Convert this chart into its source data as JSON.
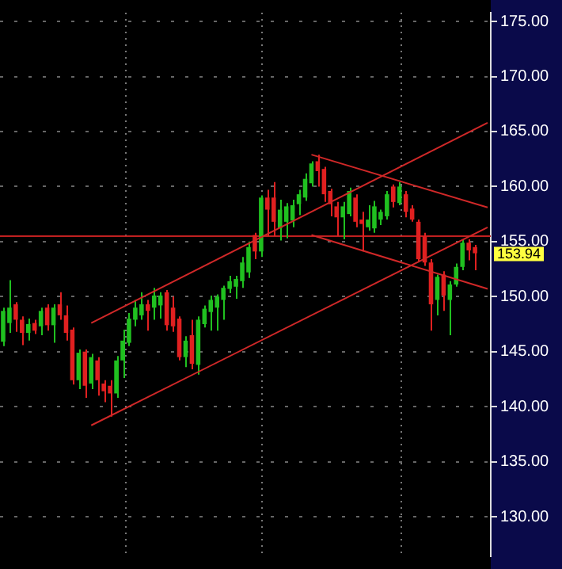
{
  "chart_data": {
    "type": "candlestick",
    "categories": [
      null,
      null,
      null,
      null,
      null,
      null,
      null,
      null,
      null,
      null,
      null,
      null,
      null,
      null,
      null,
      null,
      null,
      null,
      null,
      null,
      null,
      null,
      null,
      null,
      null,
      null,
      null,
      null,
      null,
      null,
      null,
      null,
      null,
      null,
      null,
      null,
      null,
      null,
      null,
      null,
      null,
      null,
      null,
      null,
      null,
      null,
      null,
      null,
      null,
      null,
      null,
      null,
      null,
      null,
      null,
      null,
      null,
      null,
      null,
      null,
      null,
      null,
      null,
      null,
      null,
      null,
      null,
      null,
      null,
      null,
      null,
      null,
      null,
      null,
      null,
      null,
      null,
      null
    ],
    "ohlc": [
      [
        145.9,
        149.0,
        145.5,
        148.7
      ],
      [
        147.6,
        151.5,
        146.7,
        149.0
      ],
      [
        149.3,
        149.5,
        146.8,
        147.9
      ],
      [
        147.9,
        148.2,
        145.6,
        146.7
      ],
      [
        146.7,
        148.0,
        146.0,
        147.5
      ],
      [
        147.6,
        147.9,
        146.6,
        146.9
      ],
      [
        147.3,
        149.0,
        146.5,
        148.7
      ],
      [
        149.0,
        149.3,
        146.9,
        147.4
      ],
      [
        147.4,
        149.3,
        145.8,
        149.0
      ],
      [
        149.3,
        150.4,
        147.9,
        148.3
      ],
      [
        148.3,
        149.2,
        146.0,
        146.7
      ],
      [
        147.0,
        147.2,
        142.0,
        142.4
      ],
      [
        142.4,
        145.2,
        141.6,
        144.9
      ],
      [
        145.0,
        145.2,
        140.8,
        141.9
      ],
      [
        142.1,
        144.8,
        141.6,
        144.5
      ],
      [
        144.2,
        144.5,
        141.0,
        142.4
      ],
      [
        142.1,
        142.4,
        140.4,
        141.4
      ],
      [
        141.9,
        142.4,
        139.1,
        141.2
      ],
      [
        141.2,
        144.6,
        140.8,
        144.2
      ],
      [
        144.2,
        147.0,
        142.6,
        146.0
      ],
      [
        145.8,
        148.5,
        145.5,
        148.0
      ],
      [
        147.9,
        149.7,
        147.3,
        149.0
      ],
      [
        148.3,
        150.4,
        147.9,
        149.3
      ],
      [
        149.3,
        149.7,
        146.9,
        148.7
      ],
      [
        149.0,
        150.8,
        147.9,
        150.1
      ],
      [
        149.2,
        150.4,
        148.0,
        150.1
      ],
      [
        150.4,
        150.6,
        146.9,
        147.4
      ],
      [
        149.0,
        150.0,
        146.8,
        147.3
      ],
      [
        148.0,
        148.2,
        144.2,
        144.5
      ],
      [
        144.5,
        146.4,
        143.6,
        146.0
      ],
      [
        146.5,
        147.9,
        143.4,
        143.9
      ],
      [
        143.8,
        148.2,
        142.9,
        147.9
      ],
      [
        147.5,
        149.2,
        147.2,
        148.9
      ],
      [
        148.6,
        150.1,
        146.9,
        149.7
      ],
      [
        149.0,
        150.2,
        146.9,
        150.0
      ],
      [
        149.7,
        151.0,
        147.9,
        150.8
      ],
      [
        150.7,
        151.9,
        150.3,
        151.4
      ],
      [
        150.9,
        151.9,
        149.8,
        151.6
      ],
      [
        151.4,
        153.6,
        150.8,
        153.1
      ],
      [
        152.2,
        155.0,
        151.7,
        154.5
      ],
      [
        155.6,
        155.8,
        153.4,
        154.1
      ],
      [
        154.1,
        159.2,
        153.6,
        159.0
      ],
      [
        159.0,
        159.7,
        155.5,
        157.9
      ],
      [
        159.0,
        160.4,
        155.5,
        156.8
      ],
      [
        156.2,
        158.8,
        155.1,
        157.9
      ],
      [
        156.8,
        158.5,
        155.3,
        158.2
      ],
      [
        156.9,
        158.8,
        156.3,
        158.3
      ],
      [
        158.4,
        159.7,
        157.4,
        159.3
      ],
      [
        159.0,
        161.2,
        158.7,
        160.7
      ],
      [
        160.3,
        162.3,
        160.0,
        162.1
      ],
      [
        162.3,
        162.9,
        160.0,
        161.4
      ],
      [
        161.6,
        161.8,
        158.6,
        159.3
      ],
      [
        159.6,
        159.8,
        157.3,
        158.4
      ],
      [
        158.2,
        158.6,
        155.5,
        157.2
      ],
      [
        157.2,
        158.6,
        155.2,
        158.2
      ],
      [
        157.5,
        159.9,
        157.3,
        159.6
      ],
      [
        159.0,
        159.3,
        156.3,
        156.8
      ],
      [
        157.0,
        157.7,
        154.1,
        156.6
      ],
      [
        156.3,
        158.3,
        156.0,
        157.0
      ],
      [
        156.2,
        158.7,
        155.8,
        158.2
      ],
      [
        157.0,
        157.9,
        156.5,
        157.7
      ],
      [
        157.3,
        159.6,
        157.0,
        159.3
      ],
      [
        160.0,
        160.2,
        158.1,
        158.6
      ],
      [
        158.5,
        160.4,
        158.3,
        160.0
      ],
      [
        159.3,
        159.6,
        157.2,
        157.7
      ],
      [
        158.0,
        158.3,
        156.8,
        157.0
      ],
      [
        156.8,
        157.0,
        153.2,
        153.4
      ],
      [
        155.5,
        155.8,
        152.8,
        153.1
      ],
      [
        153.1,
        153.4,
        146.9,
        149.3
      ],
      [
        149.7,
        152.0,
        148.3,
        151.8
      ],
      [
        152.0,
        152.3,
        148.7,
        150.1
      ],
      [
        149.7,
        151.4,
        146.5,
        151.1
      ],
      [
        151.1,
        153.0,
        150.9,
        152.7
      ],
      [
        152.7,
        155.2,
        152.4,
        154.9
      ],
      [
        154.9,
        155.2,
        153.3,
        154.2
      ],
      [
        154.5,
        154.7,
        152.4,
        153.94
      ],
      null,
      null
    ],
    "colors": [
      "#20c020",
      "#20c020",
      "#e02020",
      "#e02020",
      "#20c020",
      "#e02020",
      "#20c020",
      "#e02020",
      "#20c020",
      "#e02020",
      "#e02020",
      "#e02020",
      "#20c020",
      "#e02020",
      "#20c020",
      "#e02020",
      "#e02020",
      "#e02020",
      "#20c020",
      "#20c020",
      "#20c020",
      "#20c020",
      "#20c020",
      "#e02020",
      "#20c020",
      "#20c020",
      "#e02020",
      "#e02020",
      "#e02020",
      "#20c020",
      "#e02020",
      "#20c020",
      "#20c020",
      "#20c020",
      "#20c020",
      "#20c020",
      "#20c020",
      "#20c020",
      "#20c020",
      "#20c020",
      "#e02020",
      "#20c020",
      "#e02020",
      "#e02020",
      "#20c020",
      "#20c020",
      "#20c020",
      "#20c020",
      "#20c020",
      "#20c020",
      "#e02020",
      "#e02020",
      "#e02020",
      "#e02020",
      "#20c020",
      "#20c020",
      "#e02020",
      "#e02020",
      "#20c020",
      "#20c020",
      "#20c020",
      "#20c020",
      "#e02020",
      "#20c020",
      "#e02020",
      "#e02020",
      "#e02020",
      "#e02020",
      "#e02020",
      "#20c020",
      "#e02020",
      "#20c020",
      "#20c020",
      "#20c020",
      "#e02020",
      "#e02020",
      null,
      null
    ],
    "series": [
      {
        "type": "line",
        "color": "#d02828",
        "values": [
          null,
          null,
          null,
          null,
          null,
          null,
          null,
          null,
          null,
          null,
          null,
          null,
          null,
          null,
          147.6,
          null,
          null,
          null,
          null,
          null,
          null,
          null,
          null,
          null,
          null,
          null,
          null,
          null,
          null,
          null,
          null,
          null,
          null,
          null,
          null,
          null,
          null,
          null,
          null,
          null,
          null,
          null,
          null,
          null,
          null,
          null,
          null,
          null,
          null,
          null,
          null,
          null,
          null,
          null,
          null,
          null,
          null,
          null,
          null,
          null,
          null,
          null,
          null,
          null,
          null,
          null,
          null,
          null,
          null,
          null,
          null,
          null,
          null,
          null,
          null,
          null,
          null,
          165.8
        ]
      },
      {
        "type": "line",
        "color": "#d02828",
        "values": [
          null,
          null,
          null,
          null,
          null,
          null,
          null,
          null,
          null,
          null,
          null,
          null,
          null,
          null,
          138.3,
          null,
          null,
          null,
          null,
          null,
          null,
          null,
          null,
          null,
          null,
          null,
          null,
          null,
          null,
          null,
          null,
          null,
          null,
          null,
          null,
          null,
          null,
          null,
          null,
          null,
          null,
          null,
          null,
          null,
          null,
          null,
          null,
          null,
          null,
          null,
          null,
          null,
          null,
          null,
          null,
          null,
          null,
          null,
          null,
          null,
          null,
          null,
          null,
          null,
          null,
          null,
          null,
          null,
          null,
          null,
          null,
          null,
          null,
          null,
          null,
          null,
          null,
          156.3
        ]
      },
      {
        "type": "line",
        "color": "#d02828",
        "values": [
          null,
          null,
          null,
          null,
          null,
          null,
          null,
          null,
          null,
          null,
          null,
          null,
          null,
          null,
          null,
          null,
          null,
          null,
          null,
          null,
          null,
          null,
          null,
          null,
          null,
          null,
          null,
          null,
          null,
          null,
          null,
          null,
          null,
          null,
          null,
          null,
          null,
          null,
          null,
          null,
          null,
          null,
          null,
          null,
          null,
          null,
          null,
          null,
          null,
          162.9,
          null,
          null,
          null,
          null,
          null,
          null,
          null,
          null,
          null,
          null,
          null,
          null,
          null,
          null,
          null,
          null,
          null,
          null,
          null,
          null,
          null,
          null,
          null,
          null,
          null,
          null,
          null,
          158.1
        ]
      },
      {
        "type": "line",
        "color": "#d02828",
        "values": [
          null,
          null,
          null,
          null,
          null,
          null,
          null,
          null,
          null,
          null,
          null,
          null,
          null,
          null,
          null,
          null,
          null,
          null,
          null,
          null,
          null,
          null,
          null,
          null,
          null,
          null,
          null,
          null,
          null,
          null,
          null,
          null,
          null,
          null,
          null,
          null,
          null,
          null,
          null,
          null,
          null,
          null,
          null,
          null,
          null,
          null,
          null,
          null,
          null,
          155.6,
          null,
          null,
          null,
          null,
          null,
          null,
          null,
          null,
          null,
          null,
          null,
          null,
          null,
          null,
          null,
          null,
          null,
          null,
          null,
          null,
          null,
          null,
          null,
          null,
          null,
          null,
          null,
          150.7
        ]
      }
    ],
    "ylim": [
      126.4,
      175.8
    ],
    "yticks": [
      {
        "value": 130,
        "label": "130.00"
      },
      {
        "value": 135,
        "label": "135.00"
      },
      {
        "value": 140,
        "label": "140.00"
      },
      {
        "value": 145,
        "label": "145.00"
      },
      {
        "value": 150,
        "label": "150.00"
      },
      {
        "value": 155,
        "label": "155.00"
      },
      {
        "value": 160,
        "label": "160.00"
      },
      {
        "value": 165,
        "label": "165.00"
      },
      {
        "value": 170,
        "label": "170.00"
      },
      {
        "value": 175,
        "label": "175.00"
      }
    ],
    "ref_lines": [
      {
        "axis": "y",
        "value": 155.5,
        "color": "#c02020"
      }
    ],
    "annotations": [
      "153.94"
    ],
    "grid": "y",
    "legend": false,
    "tick_labels": "y"
  }
}
